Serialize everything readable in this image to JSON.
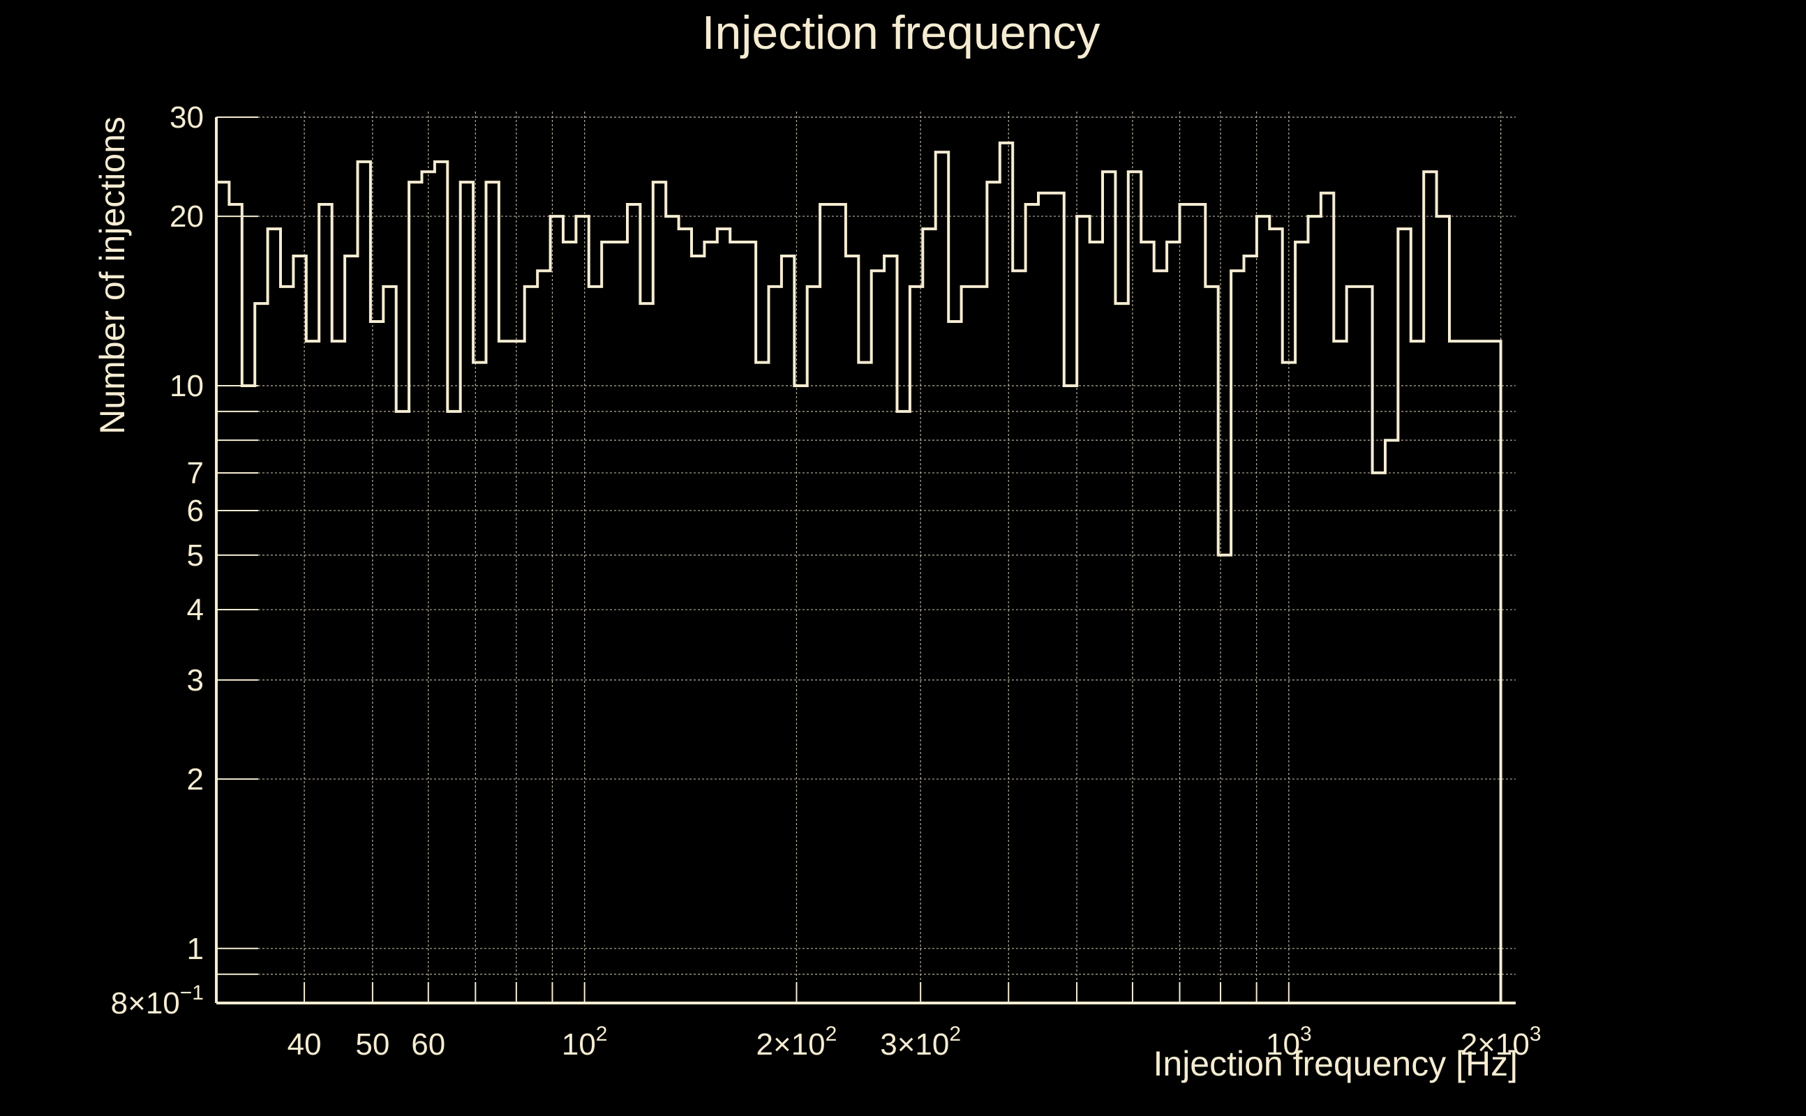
{
  "colors": {
    "background": "#000000",
    "foreground": "#f5ecd2",
    "grid": "#b8b19e"
  },
  "chart_data": {
    "type": "histogram",
    "title": "Injection frequency",
    "xlabel": "Injection frequency [Hz]",
    "ylabel": "Number of injections",
    "x_scale": "log",
    "y_scale": "log",
    "xlim": [
      30,
      2100
    ],
    "ylim": [
      0.8,
      30
    ],
    "grid": true,
    "x_ticks": [
      {
        "value": 40,
        "label": "40"
      },
      {
        "value": 50,
        "label": "50"
      },
      {
        "value": 60,
        "label": "60"
      },
      {
        "value": 100,
        "label": "10",
        "sup": "2"
      },
      {
        "value": 200,
        "label": "2×10",
        "sup": "2"
      },
      {
        "value": 300,
        "label": "3×10",
        "sup": "2"
      },
      {
        "value": 1000,
        "label": "10",
        "sup": "3"
      },
      {
        "value": 2000,
        "label": "2×10",
        "sup": "3"
      }
    ],
    "y_ticks": [
      {
        "value": 0.8,
        "label": "8×10",
        "sup": "−1"
      },
      {
        "value": 1,
        "label": "1"
      },
      {
        "value": 2,
        "label": "2"
      },
      {
        "value": 3,
        "label": "3"
      },
      {
        "value": 4,
        "label": "4"
      },
      {
        "value": 5,
        "label": "5"
      },
      {
        "value": 6,
        "label": "6"
      },
      {
        "value": 7,
        "label": "7"
      },
      {
        "value": 10,
        "label": "10"
      },
      {
        "value": 20,
        "label": "20"
      },
      {
        "value": 30,
        "label": "30"
      }
    ],
    "bins": {
      "start": 30,
      "end": 2000,
      "count": 100
    },
    "counts": [
      23,
      21,
      10,
      14,
      19,
      15,
      17,
      12,
      21,
      12,
      17,
      25,
      13,
      15,
      9,
      23,
      24,
      25,
      9,
      23,
      11,
      23,
      12,
      12,
      15,
      16,
      20,
      18,
      20,
      15,
      18,
      18,
      21,
      14,
      23,
      20,
      19,
      17,
      18,
      19,
      18,
      18,
      11,
      15,
      17,
      10,
      15,
      21,
      21,
      17,
      11,
      16,
      17,
      9,
      15,
      19,
      26,
      13,
      15,
      15,
      23,
      27,
      16,
      21,
      22,
      22,
      10,
      20,
      18,
      24,
      14,
      24,
      18,
      16,
      18,
      21,
      21,
      15,
      5,
      16,
      17,
      20,
      19,
      11,
      18,
      20,
      22,
      12,
      15,
      15,
      7,
      8,
      19,
      12,
      24,
      20,
      12,
      12,
      12,
      12
    ]
  }
}
